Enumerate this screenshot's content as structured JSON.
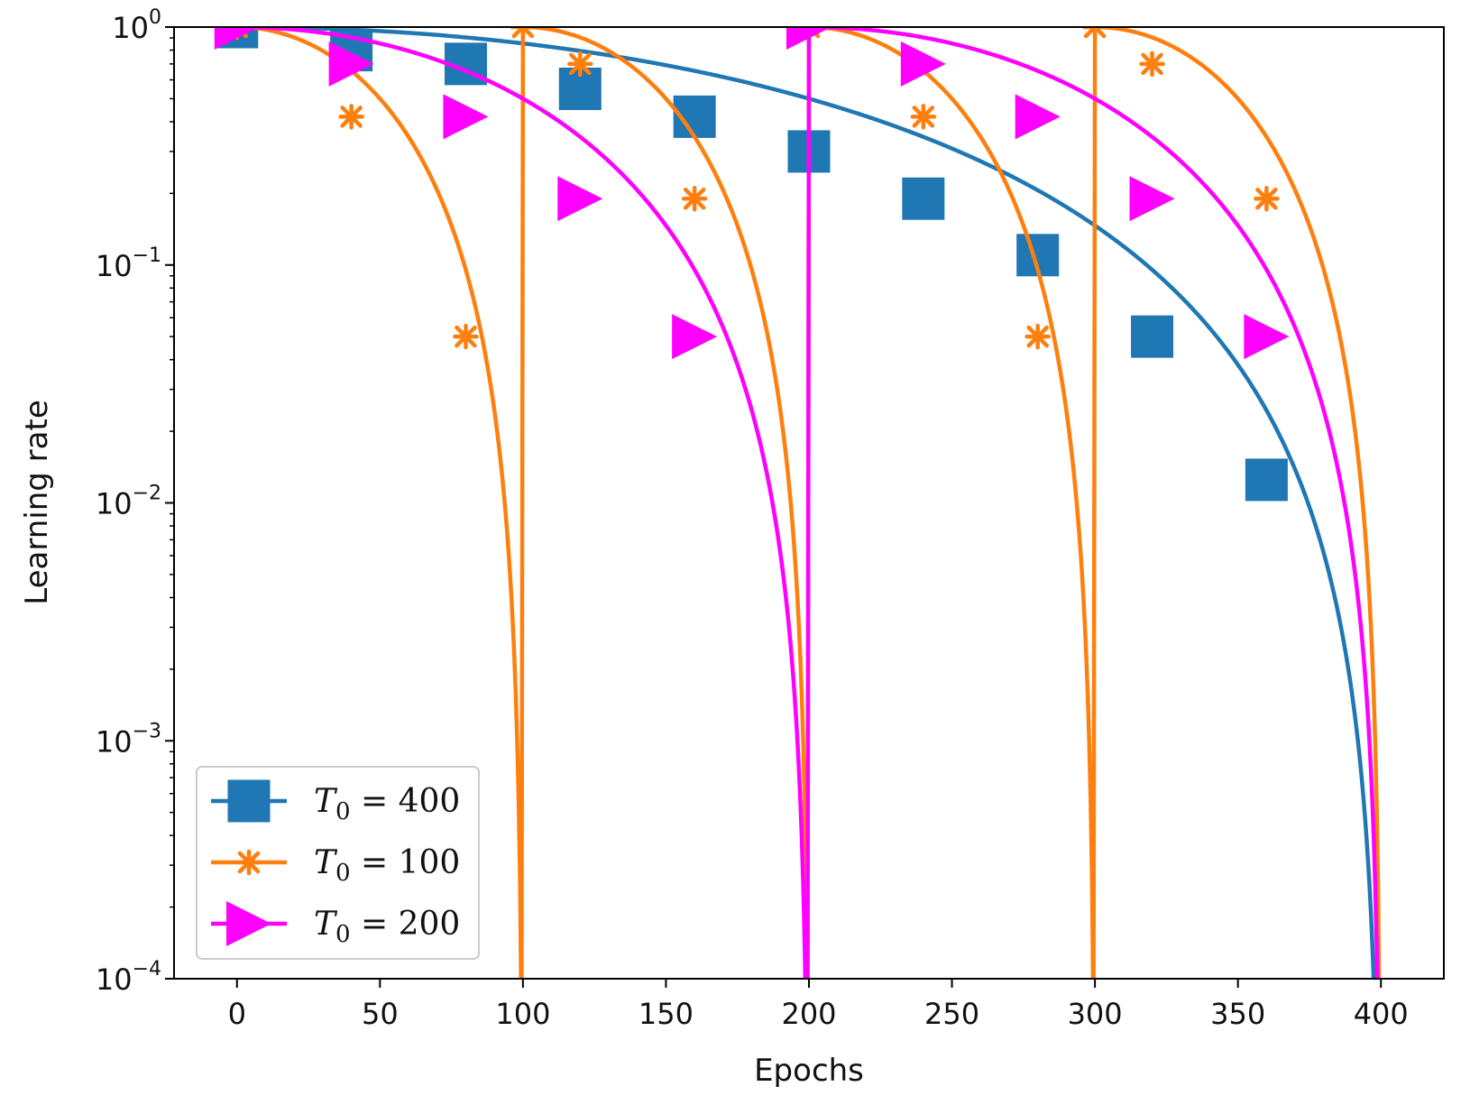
{
  "chart_data": {
    "type": "line",
    "title": "",
    "xlabel": "Epochs",
    "ylabel": "Learning rate",
    "yscale": "log",
    "xlim": [
      -22,
      422
    ],
    "ylim": [
      0.0001,
      1
    ],
    "x_ticks": [
      0,
      50,
      100,
      150,
      200,
      250,
      300,
      350,
      400
    ],
    "y_ticks": [
      {
        "value": 0.0001,
        "base": "10",
        "exp": "−4"
      },
      {
        "value": 0.001,
        "base": "10",
        "exp": "−3"
      },
      {
        "value": 0.01,
        "base": "10",
        "exp": "−2"
      },
      {
        "value": 0.1,
        "base": "10",
        "exp": "−1"
      },
      {
        "value": 1,
        "base": "10",
        "exp": "0"
      }
    ],
    "grid": false,
    "legend_position": "lower-left",
    "series": [
      {
        "name": "T_0 = 400",
        "label_var": "T",
        "label_sub": "0",
        "label_rest": " = 400",
        "color": "#1f77b4",
        "marker": "square",
        "cycle": 400,
        "points": [
          [
            0,
            1.0
          ],
          [
            40,
            0.8
          ],
          [
            80,
            0.7
          ],
          [
            120,
            0.55
          ],
          [
            160,
            0.42
          ],
          [
            200,
            0.3
          ],
          [
            240,
            0.19
          ],
          [
            280,
            0.11
          ],
          [
            320,
            0.05
          ],
          [
            360,
            0.0125
          ],
          [
            396,
            0.0001
          ]
        ]
      },
      {
        "name": "T_0 = 100",
        "label_var": "T",
        "label_sub": "0",
        "label_rest": " = 100",
        "color": "#ff7f0e",
        "marker": "star",
        "cycle": 100,
        "points": [
          [
            0,
            1.0
          ],
          [
            40,
            0.42
          ],
          [
            80,
            0.05
          ],
          [
            99,
            0.00012
          ],
          [
            100,
            1.0
          ],
          [
            120,
            0.7
          ],
          [
            160,
            0.19
          ],
          [
            199,
            0.0001
          ],
          [
            200,
            1.0
          ],
          [
            240,
            0.42
          ],
          [
            280,
            0.05
          ],
          [
            299,
            0.00012
          ],
          [
            300,
            1.0
          ],
          [
            320,
            0.7
          ],
          [
            360,
            0.19
          ],
          [
            399,
            0.00012
          ]
        ]
      },
      {
        "name": "T_0 = 200",
        "label_var": "T",
        "label_sub": "0",
        "label_rest": " = 200",
        "color": "#ff00ff",
        "marker": "triangle-right",
        "cycle": 200,
        "points": [
          [
            0,
            1.0
          ],
          [
            40,
            0.7
          ],
          [
            80,
            0.42
          ],
          [
            120,
            0.19
          ],
          [
            160,
            0.05
          ],
          [
            199,
            0.0001
          ],
          [
            200,
            1.0
          ],
          [
            240,
            0.7
          ],
          [
            280,
            0.42
          ],
          [
            320,
            0.19
          ],
          [
            360,
            0.05
          ],
          [
            399,
            0.0001
          ]
        ]
      }
    ]
  }
}
